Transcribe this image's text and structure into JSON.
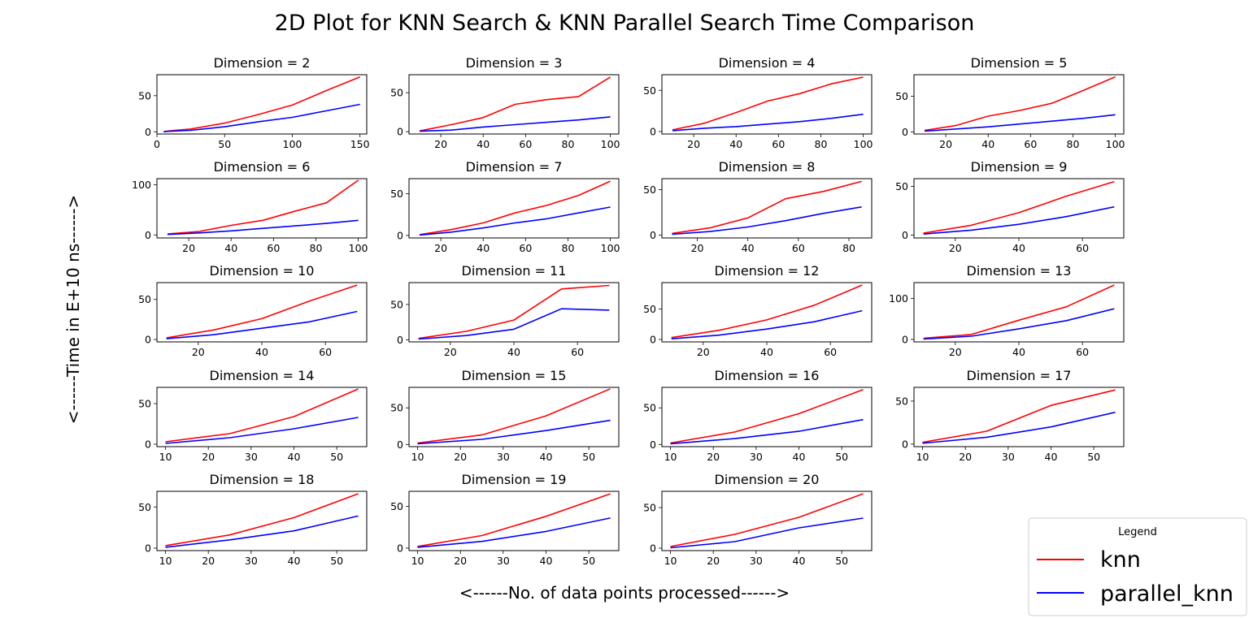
{
  "title": "2D Plot for KNN Search & KNN Parallel Search Time Comparison",
  "xlabel": "<------No. of data points processed------>",
  "ylabel": "<------Time in E+10 ns------>",
  "legend": {
    "title": "Legend",
    "items": [
      {
        "label": "knn",
        "color": "#ff0000"
      },
      {
        "label": "parallel_knn",
        "color": "#0000ff"
      }
    ]
  },
  "chart_data": [
    {
      "type": "line",
      "title": "Dimension = 2",
      "xlim": [
        0,
        155
      ],
      "ylim": [
        -3,
        79
      ],
      "xticks": [
        0,
        50,
        100,
        150
      ],
      "yticks": [
        0,
        50
      ],
      "x": [
        5,
        10,
        25,
        50,
        75,
        100,
        125,
        150
      ],
      "series": [
        {
          "name": "knn",
          "values": [
            0.3,
            1.5,
            4,
            12,
            24,
            37,
            57,
            76
          ]
        },
        {
          "name": "parallel_knn",
          "values": [
            0.2,
            0.8,
            2,
            7,
            14,
            20,
            29,
            38
          ]
        }
      ]
    },
    {
      "type": "line",
      "title": "Dimension = 3",
      "xlim": [
        5,
        104
      ],
      "ylim": [
        -3,
        73
      ],
      "xticks": [
        20,
        40,
        60,
        80,
        100
      ],
      "yticks": [
        0,
        50
      ],
      "x": [
        10,
        25,
        40,
        55,
        70,
        85,
        100
      ],
      "series": [
        {
          "name": "knn",
          "values": [
            1,
            9,
            18,
            35,
            41,
            45,
            70
          ]
        },
        {
          "name": "parallel_knn",
          "values": [
            0.5,
            2,
            6,
            9,
            12,
            15,
            19
          ]
        }
      ]
    },
    {
      "type": "line",
      "title": "Dimension = 4",
      "xlim": [
        5,
        104
      ],
      "ylim": [
        -3,
        69
      ],
      "xticks": [
        20,
        40,
        60,
        80,
        100
      ],
      "yticks": [
        0,
        50
      ],
      "x": [
        10,
        25,
        40,
        55,
        70,
        85,
        100
      ],
      "series": [
        {
          "name": "knn",
          "values": [
            2,
            10,
            23,
            37,
            46,
            58,
            66
          ]
        },
        {
          "name": "parallel_knn",
          "values": [
            1,
            4,
            6,
            9,
            12,
            16,
            21
          ]
        }
      ]
    },
    {
      "type": "line",
      "title": "Dimension = 5",
      "xlim": [
        5,
        104
      ],
      "ylim": [
        -3,
        80
      ],
      "xticks": [
        20,
        40,
        60,
        80,
        100
      ],
      "yticks": [
        0,
        50
      ],
      "x": [
        10,
        25,
        40,
        55,
        70,
        85,
        100
      ],
      "series": [
        {
          "name": "knn",
          "values": [
            2,
            9,
            22,
            30,
            40,
            58,
            77
          ]
        },
        {
          "name": "parallel_knn",
          "values": [
            1,
            4,
            7,
            11,
            15,
            19,
            24
          ]
        }
      ]
    },
    {
      "type": "line",
      "title": "Dimension = 6",
      "xlim": [
        5,
        104
      ],
      "ylim": [
        -6,
        112
      ],
      "xticks": [
        20,
        40,
        60,
        80,
        100
      ],
      "yticks": [
        0,
        100
      ],
      "x": [
        10,
        25,
        40,
        55,
        70,
        85,
        100
      ],
      "series": [
        {
          "name": "knn",
          "values": [
            2,
            7,
            19,
            29,
            47,
            64,
            109
          ]
        },
        {
          "name": "parallel_knn",
          "values": [
            1,
            4,
            8,
            13,
            18,
            23,
            29
          ]
        }
      ]
    },
    {
      "type": "line",
      "title": "Dimension = 7",
      "xlim": [
        5,
        104
      ],
      "ylim": [
        -3,
        68
      ],
      "xticks": [
        20,
        40,
        60,
        80,
        100
      ],
      "yticks": [
        0,
        50
      ],
      "x": [
        10,
        25,
        40,
        55,
        70,
        85,
        100
      ],
      "series": [
        {
          "name": "knn",
          "values": [
            1,
            7,
            15,
            27,
            36,
            48,
            65
          ]
        },
        {
          "name": "parallel_knn",
          "values": [
            0.5,
            4,
            9,
            15,
            20,
            27,
            34
          ]
        }
      ]
    },
    {
      "type": "line",
      "title": "Dimension = 8",
      "xlim": [
        6,
        89
      ],
      "ylim": [
        -3,
        62
      ],
      "xticks": [
        20,
        40,
        60,
        80
      ],
      "yticks": [
        0,
        50
      ],
      "x": [
        10,
        25,
        40,
        55,
        70,
        85
      ],
      "series": [
        {
          "name": "knn",
          "values": [
            2,
            8,
            19,
            40,
            48,
            59
          ]
        },
        {
          "name": "parallel_knn",
          "values": [
            1,
            4,
            9,
            16,
            24,
            31
          ]
        }
      ]
    },
    {
      "type": "line",
      "title": "Dimension = 9",
      "xlim": [
        7,
        73
      ],
      "ylim": [
        -3,
        58
      ],
      "xticks": [
        20,
        40,
        60
      ],
      "yticks": [
        0,
        50
      ],
      "x": [
        10,
        25,
        40,
        55,
        70
      ],
      "series": [
        {
          "name": "knn",
          "values": [
            2,
            10,
            23,
            40,
            55
          ]
        },
        {
          "name": "parallel_knn",
          "values": [
            1,
            5,
            11,
            19,
            29
          ]
        }
      ]
    },
    {
      "type": "line",
      "title": "Dimension = 10",
      "xlim": [
        7,
        73
      ],
      "ylim": [
        -3,
        71
      ],
      "xticks": [
        20,
        40,
        60
      ],
      "yticks": [
        0,
        50
      ],
      "x": [
        10,
        25,
        40,
        55,
        70
      ],
      "series": [
        {
          "name": "knn",
          "values": [
            2,
            12,
            26,
            48,
            68
          ]
        },
        {
          "name": "parallel_knn",
          "values": [
            1,
            6,
            14,
            22,
            35
          ]
        }
      ]
    },
    {
      "type": "line",
      "title": "Dimension = 11",
      "xlim": [
        7,
        73
      ],
      "ylim": [
        -3,
        81
      ],
      "xticks": [
        20,
        40,
        60
      ],
      "yticks": [
        0,
        50
      ],
      "x": [
        10,
        25,
        40,
        55,
        70
      ],
      "series": [
        {
          "name": "knn",
          "values": [
            2,
            12,
            28,
            72,
            77
          ]
        },
        {
          "name": "parallel_knn",
          "values": [
            1,
            6,
            15,
            44,
            42
          ]
        }
      ]
    },
    {
      "type": "line",
      "title": "Dimension = 12",
      "xlim": [
        7,
        73
      ],
      "ylim": [
        -4,
        93
      ],
      "xticks": [
        20,
        40,
        60
      ],
      "yticks": [
        0,
        50
      ],
      "x": [
        10,
        25,
        40,
        55,
        70
      ],
      "series": [
        {
          "name": "knn",
          "values": [
            3,
            15,
            32,
            56,
            89
          ]
        },
        {
          "name": "parallel_knn",
          "values": [
            1,
            7,
            17,
            29,
            47
          ]
        }
      ]
    },
    {
      "type": "line",
      "title": "Dimension = 13",
      "xlim": [
        7,
        73
      ],
      "ylim": [
        -6,
        139
      ],
      "xticks": [
        20,
        40,
        60
      ],
      "yticks": [
        0,
        100
      ],
      "x": [
        10,
        25,
        40,
        55,
        70
      ],
      "series": [
        {
          "name": "knn",
          "values": [
            3,
            12,
            47,
            80,
            133
          ]
        },
        {
          "name": "parallel_knn",
          "values": [
            1,
            8,
            26,
            46,
            75
          ]
        }
      ]
    },
    {
      "type": "line",
      "title": "Dimension = 14",
      "xlim": [
        8,
        57
      ],
      "ylim": [
        -3,
        70
      ],
      "xticks": [
        10,
        20,
        30,
        40,
        50
      ],
      "yticks": [
        0,
        50
      ],
      "x": [
        10,
        25,
        40,
        55
      ],
      "series": [
        {
          "name": "knn",
          "values": [
            3,
            13,
            34,
            68
          ]
        },
        {
          "name": "parallel_knn",
          "values": [
            1,
            8,
            19,
            33
          ]
        }
      ]
    },
    {
      "type": "line",
      "title": "Dimension = 15",
      "xlim": [
        8,
        57
      ],
      "ylim": [
        -3,
        78
      ],
      "xticks": [
        10,
        20,
        30,
        40,
        50
      ],
      "yticks": [
        0,
        50
      ],
      "x": [
        10,
        25,
        40,
        55
      ],
      "series": [
        {
          "name": "knn",
          "values": [
            2,
            13,
            39,
            76
          ]
        },
        {
          "name": "parallel_knn",
          "values": [
            1,
            7,
            19,
            33
          ]
        }
      ]
    },
    {
      "type": "line",
      "title": "Dimension = 16",
      "xlim": [
        8,
        57
      ],
      "ylim": [
        -3,
        78
      ],
      "xticks": [
        10,
        20,
        30,
        40,
        50
      ],
      "yticks": [
        0,
        50
      ],
      "x": [
        10,
        25,
        40,
        55
      ],
      "series": [
        {
          "name": "knn",
          "values": [
            2,
            17,
            42,
            75
          ]
        },
        {
          "name": "parallel_knn",
          "values": [
            1,
            8,
            18,
            34
          ]
        }
      ]
    },
    {
      "type": "line",
      "title": "Dimension = 17",
      "xlim": [
        8,
        57
      ],
      "ylim": [
        -3,
        66
      ],
      "xticks": [
        10,
        20,
        30,
        40,
        50
      ],
      "yticks": [
        0,
        50
      ],
      "x": [
        10,
        25,
        40,
        55
      ],
      "series": [
        {
          "name": "knn",
          "values": [
            2,
            15,
            45,
            63
          ]
        },
        {
          "name": "parallel_knn",
          "values": [
            1,
            8,
            20,
            37
          ]
        }
      ]
    },
    {
      "type": "line",
      "title": "Dimension = 18",
      "xlim": [
        8,
        57
      ],
      "ylim": [
        -3,
        69
      ],
      "xticks": [
        10,
        20,
        30,
        40,
        50
      ],
      "yticks": [
        0,
        50
      ],
      "x": [
        10,
        25,
        40,
        55
      ],
      "series": [
        {
          "name": "knn",
          "values": [
            3,
            16,
            37,
            66
          ]
        },
        {
          "name": "parallel_knn",
          "values": [
            1,
            10,
            21,
            39
          ]
        }
      ]
    },
    {
      "type": "line",
      "title": "Dimension = 19",
      "xlim": [
        8,
        57
      ],
      "ylim": [
        -3,
        68
      ],
      "xticks": [
        10,
        20,
        30,
        40,
        50
      ],
      "yticks": [
        0,
        50
      ],
      "x": [
        10,
        25,
        40,
        55
      ],
      "series": [
        {
          "name": "knn",
          "values": [
            2,
            15,
            38,
            65
          ]
        },
        {
          "name": "parallel_knn",
          "values": [
            1,
            8,
            20,
            36
          ]
        }
      ]
    },
    {
      "type": "line",
      "title": "Dimension = 20",
      "xlim": [
        8,
        57
      ],
      "ylim": [
        -3,
        70
      ],
      "xticks": [
        10,
        20,
        30,
        40,
        50
      ],
      "yticks": [
        0,
        50
      ],
      "x": [
        10,
        25,
        40,
        55
      ],
      "series": [
        {
          "name": "knn",
          "values": [
            2,
            17,
            38,
            67
          ]
        },
        {
          "name": "parallel_knn",
          "values": [
            0.5,
            8,
            25,
            37
          ]
        }
      ]
    }
  ]
}
